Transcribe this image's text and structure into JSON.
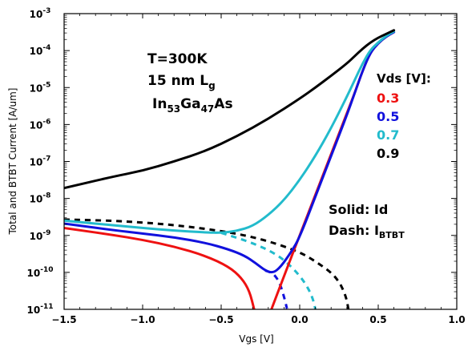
{
  "chart_data": {
    "type": "line",
    "xlabel": "Vgs [V]",
    "ylabel": "Total and BTBT Current [A/um]",
    "xlim": [
      -1.5,
      1.0
    ],
    "ylim_log10": [
      -11,
      -3
    ],
    "y_scale": "log",
    "x_ticks": [
      {
        "value": -1.5,
        "label": "−1.5"
      },
      {
        "value": -1.0,
        "label": "−1.0"
      },
      {
        "value": -0.5,
        "label": "−0.5"
      },
      {
        "value": 0.0,
        "label": "0.0"
      },
      {
        "value": 0.5,
        "label": "0.5"
      },
      {
        "value": 1.0,
        "label": "1.0"
      }
    ],
    "y_ticks": [
      {
        "exp": -3,
        "label": "10",
        "sup": "-3"
      },
      {
        "exp": -4,
        "label": "10",
        "sup": "-4"
      },
      {
        "exp": -5,
        "label": "10",
        "sup": "-5"
      },
      {
        "exp": -6,
        "label": "10",
        "sup": "-6"
      },
      {
        "exp": -7,
        "label": "10",
        "sup": "-7"
      },
      {
        "exp": -8,
        "label": "10",
        "sup": "-8"
      },
      {
        "exp": -9,
        "label": "10",
        "sup": "-9"
      },
      {
        "exp": -10,
        "label": "10",
        "sup": "-10"
      },
      {
        "exp": -11,
        "label": "10",
        "sup": "-11"
      }
    ],
    "annotations": {
      "temperature": "T=300K",
      "gate_length_prefix": "15 nm L",
      "gate_length_sub": "g",
      "material_in": "In",
      "material_in_sub": "53",
      "material_ga": "Ga",
      "material_ga_sub": "47",
      "material_as": "As",
      "vds_title": "Vds [V]:",
      "legend_solid": "Solid: Id",
      "legend_dash_prefix": "Dash: I",
      "legend_dash_sub": "BTBT"
    },
    "legend_vds": [
      {
        "label": "0.3",
        "color": "#ee1111"
      },
      {
        "label": "0.5",
        "color": "#1111dd"
      },
      {
        "label": "0.7",
        "color": "#22bbcc"
      },
      {
        "label": "0.9",
        "color": "#000000"
      }
    ],
    "series": [
      {
        "vds": 0.3,
        "kind": "Id",
        "style": "solid",
        "color": "#ee1111",
        "x": [
          -1.5,
          -1.2,
          -1.0,
          -0.8,
          -0.6,
          -0.45,
          -0.37,
          -0.32,
          -0.29
        ],
        "log10_y": [
          -8.8,
          -8.98,
          -9.12,
          -9.3,
          -9.55,
          -9.85,
          -10.15,
          -10.5,
          -11.0
        ]
      },
      {
        "vds": 0.3,
        "kind": "Id",
        "style": "solid",
        "color": "#ee1111",
        "x": [
          -0.18,
          -0.1,
          0.0,
          0.1,
          0.2,
          0.3,
          0.35,
          0.4,
          0.45,
          0.5,
          0.55,
          0.6
        ],
        "log10_y": [
          -11.0,
          -10.1,
          -9.0,
          -7.9,
          -6.8,
          -5.7,
          -5.15,
          -4.55,
          -4.05,
          -3.8,
          -3.62,
          -3.5
        ]
      },
      {
        "vds": 0.5,
        "kind": "Id",
        "style": "solid",
        "color": "#1111dd",
        "x": [
          -1.5,
          -1.2,
          -1.0,
          -0.8,
          -0.6,
          -0.45,
          -0.35,
          -0.28,
          -0.22,
          -0.17,
          -0.12,
          -0.05,
          0.0,
          0.1,
          0.2,
          0.3,
          0.35,
          0.4,
          0.45,
          0.5,
          0.55,
          0.6
        ],
        "log10_y": [
          -8.68,
          -8.85,
          -8.95,
          -9.05,
          -9.2,
          -9.38,
          -9.55,
          -9.75,
          -9.95,
          -10.02,
          -9.85,
          -9.42,
          -9.05,
          -7.95,
          -6.85,
          -5.75,
          -5.15,
          -4.55,
          -4.05,
          -3.8,
          -3.62,
          -3.5
        ]
      },
      {
        "vds": 0.7,
        "kind": "Id",
        "style": "solid",
        "color": "#22bbcc",
        "x": [
          -1.5,
          -1.2,
          -1.0,
          -0.8,
          -0.6,
          -0.5,
          -0.4,
          -0.3,
          -0.2,
          -0.1,
          0.0,
          0.1,
          0.2,
          0.3,
          0.35,
          0.4,
          0.45,
          0.5,
          0.55,
          0.6
        ],
        "log10_y": [
          -8.6,
          -8.72,
          -8.8,
          -8.87,
          -8.92,
          -8.93,
          -8.88,
          -8.75,
          -8.45,
          -8.05,
          -7.5,
          -6.85,
          -6.1,
          -5.25,
          -4.8,
          -4.35,
          -3.98,
          -3.78,
          -3.6,
          -3.48
        ]
      },
      {
        "vds": 0.9,
        "kind": "Id",
        "style": "solid",
        "color": "#000000",
        "x": [
          -1.5,
          -1.2,
          -1.0,
          -0.8,
          -0.6,
          -0.4,
          -0.2,
          0.0,
          0.1,
          0.2,
          0.3,
          0.35,
          0.4,
          0.45,
          0.5,
          0.55,
          0.6
        ],
        "log10_y": [
          -7.72,
          -7.42,
          -7.25,
          -7.0,
          -6.72,
          -6.32,
          -5.85,
          -5.3,
          -5.0,
          -4.68,
          -4.35,
          -4.15,
          -3.95,
          -3.78,
          -3.65,
          -3.55,
          -3.45
        ]
      },
      {
        "vds": 0.5,
        "kind": "IBTBT",
        "style": "dash",
        "color": "#1111dd",
        "x": [
          -0.22,
          -0.17,
          -0.13,
          -0.1,
          -0.08
        ],
        "log10_y": [
          -9.95,
          -10.02,
          -10.25,
          -10.65,
          -11.0
        ]
      },
      {
        "vds": 0.7,
        "kind": "IBTBT",
        "style": "dash",
        "color": "#22bbcc",
        "x": [
          -0.5,
          -0.3,
          -0.15,
          -0.05,
          0.03,
          0.08,
          0.1
        ],
        "log10_y": [
          -8.93,
          -9.2,
          -9.5,
          -9.85,
          -10.25,
          -10.65,
          -11.0
        ]
      },
      {
        "vds": 0.9,
        "kind": "IBTBT",
        "style": "dash",
        "color": "#000000",
        "x": [
          -1.5,
          -1.2,
          -1.0,
          -0.8,
          -0.6,
          -0.4,
          -0.2,
          0.0,
          0.1,
          0.2,
          0.25,
          0.28,
          0.3,
          0.31
        ],
        "log10_y": [
          -8.57,
          -8.6,
          -8.65,
          -8.72,
          -8.82,
          -8.95,
          -9.15,
          -9.45,
          -9.7,
          -10.0,
          -10.25,
          -10.5,
          -10.75,
          -11.0
        ]
      }
    ]
  }
}
